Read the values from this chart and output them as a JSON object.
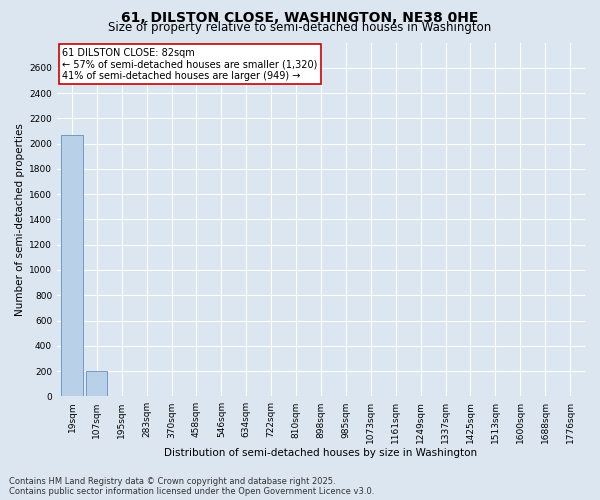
{
  "title": "61, DILSTON CLOSE, WASHINGTON, NE38 0HE",
  "subtitle": "Size of property relative to semi-detached houses in Washington",
  "xlabel": "Distribution of semi-detached houses by size in Washington",
  "ylabel": "Number of semi-detached properties",
  "categories": [
    "19sqm",
    "107sqm",
    "195sqm",
    "283sqm",
    "370sqm",
    "458sqm",
    "546sqm",
    "634sqm",
    "722sqm",
    "810sqm",
    "898sqm",
    "985sqm",
    "1073sqm",
    "1161sqm",
    "1249sqm",
    "1337sqm",
    "1425sqm",
    "1513sqm",
    "1600sqm",
    "1688sqm",
    "1776sqm"
  ],
  "values": [
    2069,
    200,
    0,
    0,
    0,
    0,
    0,
    0,
    0,
    0,
    0,
    0,
    0,
    0,
    0,
    0,
    0,
    0,
    0,
    0,
    0
  ],
  "bar_color": "#b8d0e8",
  "bar_edge_color": "#6090c0",
  "ylim": [
    0,
    2800
  ],
  "yticks": [
    0,
    200,
    400,
    600,
    800,
    1000,
    1200,
    1400,
    1600,
    1800,
    2000,
    2200,
    2400,
    2600
  ],
  "annotation_title": "61 DILSTON CLOSE: 82sqm",
  "annotation_line1": "← 57% of semi-detached houses are smaller (1,320)",
  "annotation_line2": "41% of semi-detached houses are larger (949) →",
  "annotation_box_color": "#ffffff",
  "annotation_box_edge": "#cc0000",
  "background_color": "#dce6f0",
  "plot_bg_color": "#dce6f0",
  "grid_color": "#ffffff",
  "footer_line1": "Contains HM Land Registry data © Crown copyright and database right 2025.",
  "footer_line2": "Contains public sector information licensed under the Open Government Licence v3.0.",
  "title_fontsize": 10,
  "subtitle_fontsize": 8.5,
  "annotation_fontsize": 7,
  "footer_fontsize": 6,
  "tick_fontsize": 6.5,
  "ylabel_fontsize": 7.5,
  "xlabel_fontsize": 7.5
}
